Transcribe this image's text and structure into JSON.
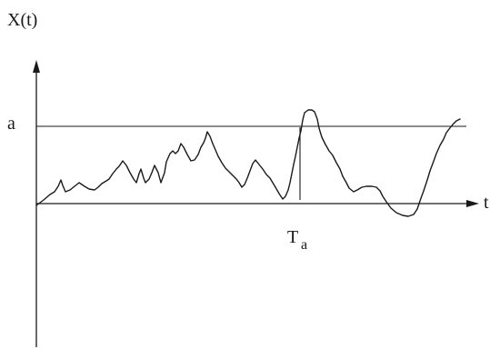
{
  "labels": {
    "y_axis": "X(t)",
    "x_axis": "t",
    "level": "a",
    "hitting_time": "T",
    "hitting_time_subscript": "a"
  },
  "colors": {
    "ink": "#1a1a1a",
    "background": "#ffffff"
  }
}
